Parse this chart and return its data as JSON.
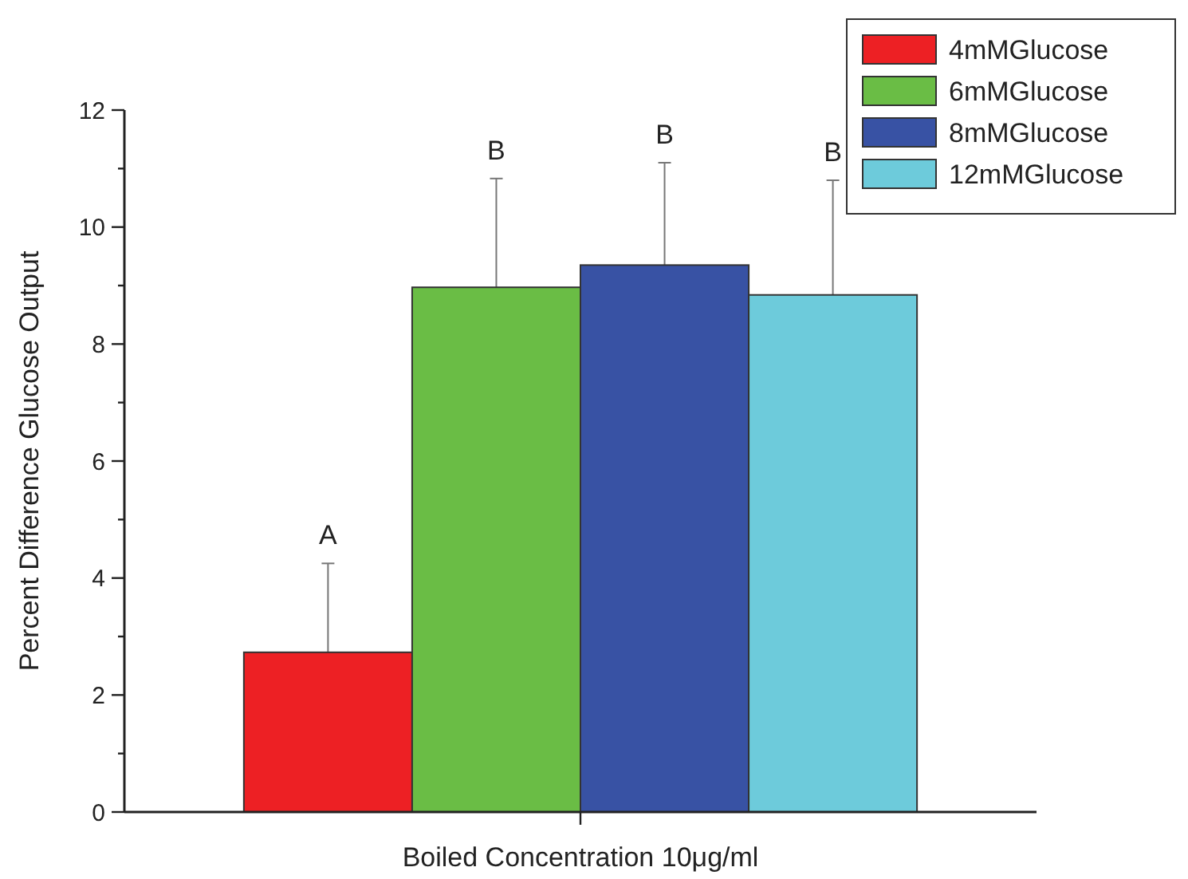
{
  "chart_data": {
    "type": "bar",
    "xlabel": "Boiled Concentration 10μg/ml",
    "ylabel": "Percent Difference Glucose Output",
    "categories": [
      null
    ],
    "series": [
      {
        "name": "4mMGlucose",
        "color": "#ed2024",
        "values": [
          2.73
        ],
        "errors": [
          1.52
        ]
      },
      {
        "name": "6mMGlucose",
        "color": "#6abd45",
        "values": [
          8.97
        ],
        "errors": [
          1.86
        ]
      },
      {
        "name": "8mMGlucose",
        "color": "#3852a4",
        "values": [
          9.35
        ],
        "errors": [
          1.75
        ]
      },
      {
        "name": "12mMGlucose",
        "color": "#6dcbdb",
        "values": [
          8.84
        ],
        "errors": [
          1.96
        ]
      }
    ],
    "ylim": [
      0,
      12
    ],
    "yticks": [
      0,
      {
        "value": 1,
        "label": null
      },
      2,
      {
        "value": 3,
        "label": null
      },
      4,
      {
        "value": 5,
        "label": null
      },
      6,
      {
        "value": 7,
        "label": null
      },
      8,
      {
        "value": 9,
        "label": null
      },
      10,
      {
        "value": 11,
        "label": null
      },
      12
    ],
    "annotations": [
      {
        "text": "A",
        "y": 4.25
      },
      {
        "text": "B",
        "y": 10.83
      },
      {
        "text": "B",
        "y": 11.1
      },
      {
        "text": "B",
        "y": 10.8
      }
    ],
    "grid": false,
    "legend": "top right"
  }
}
